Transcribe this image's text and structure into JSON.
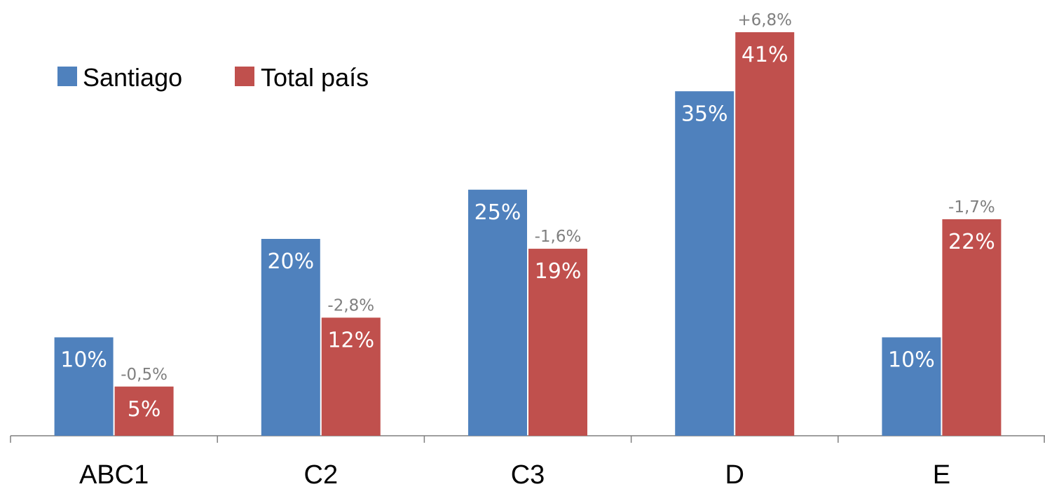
{
  "chart_data": {
    "type": "bar",
    "categories": [
      "ABC1",
      "C2",
      "C3",
      "D",
      "E"
    ],
    "series": [
      {
        "name": "Santiago",
        "color": "#4f81bd",
        "values": [
          10,
          20,
          25,
          35,
          10
        ],
        "labels": [
          "10%",
          "20%",
          "25%",
          "35%",
          "10%"
        ]
      },
      {
        "name": "Total país",
        "color": "#c0504d",
        "values": [
          5,
          12,
          19,
          41,
          22
        ],
        "labels": [
          "5%",
          "12%",
          "19%",
          "41%",
          "22%"
        ]
      }
    ],
    "annotations": [
      "-0,5%",
      "-2,8%",
      "-1,6%",
      "+6,8%",
      "-1,7%"
    ],
    "annotation_color": "#7f7f7f",
    "ylim": [
      0,
      45
    ],
    "grid": false,
    "legend_position": "top-left"
  }
}
